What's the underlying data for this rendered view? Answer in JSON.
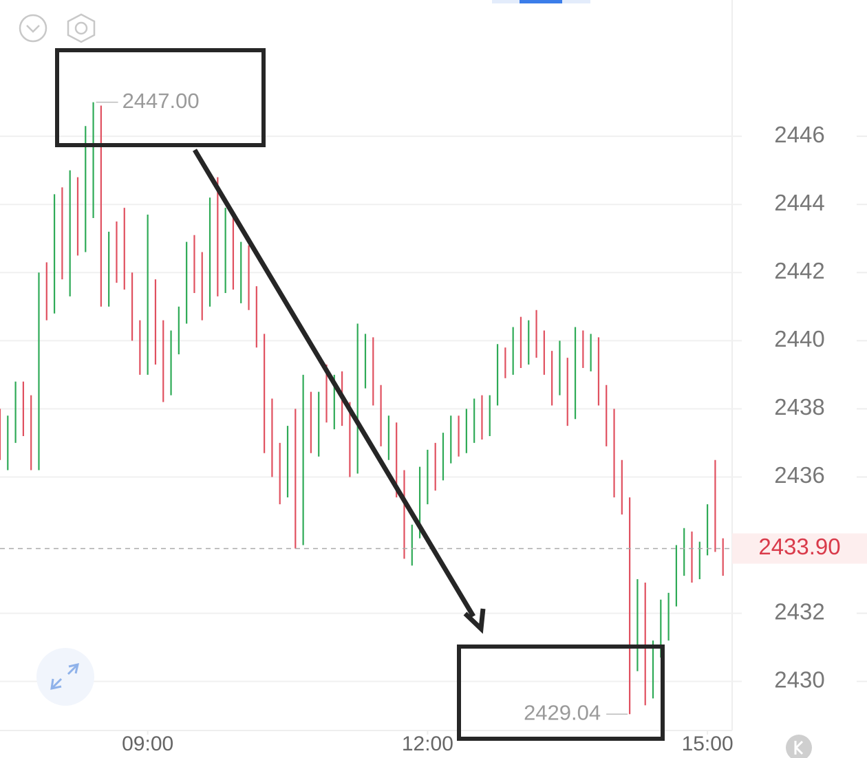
{
  "chart_data": {
    "type": "ohlc",
    "up_color": "#2eaa56",
    "down_color": "#e0505f",
    "grid": true,
    "xlim": [
      0,
      94
    ],
    "ylim": [
      2428.6,
      2450
    ],
    "yticks": [
      2430,
      2432,
      2436,
      2438,
      2440,
      2442,
      2444,
      2446
    ],
    "xticks": [
      {
        "value": 19,
        "label": "09:00"
      },
      {
        "value": 55,
        "label": "12:00"
      },
      {
        "value": 91,
        "label": "15:00"
      }
    ],
    "last_price": {
      "value": 2433.9,
      "label": "2433.90",
      "color": "#d93a4a"
    },
    "annotations": [
      {
        "value": 2447.0,
        "label": "2447.00",
        "kind": "high"
      },
      {
        "value": 2429.04,
        "label": "2429.04",
        "kind": "low"
      }
    ],
    "bars": [
      [
        2437.5,
        2438,
        2436.5,
        2437
      ],
      [
        2437,
        2437.8,
        2436.2,
        2437.6
      ],
      [
        2437.6,
        2438.8,
        2437,
        2438.5
      ],
      [
        2438.5,
        2438.8,
        2437.2,
        2437.4
      ],
      [
        2437.4,
        2438.4,
        2436.2,
        2436.4
      ],
      [
        2436.4,
        2442,
        2436.2,
        2441.8
      ],
      [
        2441.8,
        2442.3,
        2440.6,
        2441
      ],
      [
        2441,
        2444.3,
        2440.8,
        2443.8
      ],
      [
        2443.8,
        2444.5,
        2441.8,
        2442
      ],
      [
        2442,
        2445,
        2441.3,
        2444.6
      ],
      [
        2444.6,
        2444.8,
        2442.5,
        2443
      ],
      [
        2443,
        2446.3,
        2442.6,
        2446
      ],
      [
        2446,
        2447,
        2443.6,
        2446.8
      ],
      [
        2446.8,
        2446.9,
        2441,
        2441.4
      ],
      [
        2441.4,
        2443.2,
        2441,
        2442.8
      ],
      [
        2442.8,
        2443.5,
        2441.7,
        2442
      ],
      [
        2442,
        2443.9,
        2441.5,
        2441.7
      ],
      [
        2441.7,
        2442,
        2440,
        2440.3
      ],
      [
        2440.3,
        2440.6,
        2439,
        2439.3
      ],
      [
        2439.3,
        2443.7,
        2439,
        2441.5
      ],
      [
        2441.5,
        2441.8,
        2439.3,
        2439.6
      ],
      [
        2439.6,
        2440.6,
        2438.2,
        2438.6
      ],
      [
        2438.6,
        2440.3,
        2438.4,
        2440
      ],
      [
        2440,
        2441,
        2439.6,
        2440.8
      ],
      [
        2440.8,
        2442.9,
        2440.5,
        2442.6
      ],
      [
        2442.6,
        2443.1,
        2441.4,
        2441.8
      ],
      [
        2441.8,
        2442.6,
        2440.6,
        2441.2
      ],
      [
        2441.2,
        2444.2,
        2441,
        2443.8
      ],
      [
        2443.8,
        2444.8,
        2441.3,
        2441.8
      ],
      [
        2441.8,
        2443.9,
        2441.4,
        2443.5
      ],
      [
        2443.5,
        2443.7,
        2441.5,
        2441.9
      ],
      [
        2441.9,
        2442.9,
        2441.1,
        2442.4
      ],
      [
        2442.4,
        2442.8,
        2440.9,
        2441.1
      ],
      [
        2441.1,
        2441.6,
        2439.8,
        2440
      ],
      [
        2440,
        2440.2,
        2436.7,
        2437
      ],
      [
        2437,
        2438.3,
        2436,
        2436.3
      ],
      [
        2436.3,
        2437,
        2435.2,
        2435.5
      ],
      [
        2435.5,
        2437.5,
        2435.4,
        2437.2
      ],
      [
        2437.2,
        2438,
        2433.9,
        2434.2
      ],
      [
        2434.2,
        2439,
        2434,
        2438.3
      ],
      [
        2438.3,
        2438.5,
        2436.7,
        2437
      ],
      [
        2437,
        2438.5,
        2436.6,
        2438.2
      ],
      [
        2438.2,
        2439.3,
        2437.6,
        2437.9
      ],
      [
        2437.9,
        2439,
        2437.4,
        2438.8
      ],
      [
        2438.8,
        2439.1,
        2437.5,
        2437.8
      ],
      [
        2437.8,
        2438.2,
        2436,
        2436.3
      ],
      [
        2436.3,
        2440.5,
        2436.1,
        2439.7
      ],
      [
        2439.7,
        2440.2,
        2438.6,
        2439.9
      ],
      [
        2439.9,
        2440.1,
        2438.1,
        2438.4
      ],
      [
        2438.4,
        2438.7,
        2436.9,
        2437.2
      ],
      [
        2437.2,
        2437.8,
        2436.5,
        2437.5
      ],
      [
        2437.5,
        2437.6,
        2435.4,
        2435.7
      ],
      [
        2435.7,
        2436.2,
        2433.6,
        2433.9
      ],
      [
        2433.9,
        2434.6,
        2433.4,
        2434.3
      ],
      [
        2434.3,
        2436.3,
        2434.2,
        2436
      ],
      [
        2436,
        2436.8,
        2435.2,
        2436.5
      ],
      [
        2436.5,
        2437,
        2435.6,
        2436.2
      ],
      [
        2436.2,
        2437.3,
        2435.9,
        2437
      ],
      [
        2437,
        2437.8,
        2436.4,
        2437.5
      ],
      [
        2437.5,
        2437.8,
        2436.6,
        2436.9
      ],
      [
        2436.9,
        2438,
        2436.7,
        2437.8
      ],
      [
        2437.8,
        2438.3,
        2437,
        2438
      ],
      [
        2438,
        2438.4,
        2437.1,
        2437.4
      ],
      [
        2437.4,
        2438.4,
        2437.2,
        2438.3
      ],
      [
        2438.3,
        2439.9,
        2438.1,
        2439.6
      ],
      [
        2439.6,
        2439.8,
        2438.9,
        2439.2
      ],
      [
        2439.2,
        2440.4,
        2439,
        2440.1
      ],
      [
        2440.1,
        2440.7,
        2439.2,
        2439.5
      ],
      [
        2439.5,
        2440.6,
        2439.3,
        2440.4
      ],
      [
        2440.4,
        2440.9,
        2439.5,
        2439.8
      ],
      [
        2439.8,
        2440.3,
        2439,
        2439.3
      ],
      [
        2439.3,
        2439.7,
        2438.1,
        2438.6
      ],
      [
        2438.6,
        2440,
        2438.4,
        2439.3
      ],
      [
        2439.3,
        2439.5,
        2437.5,
        2437.8
      ],
      [
        2437.8,
        2440.4,
        2437.7,
        2440
      ],
      [
        2440,
        2440.3,
        2439.2,
        2439.6
      ],
      [
        2439.6,
        2440.2,
        2439.1,
        2440
      ],
      [
        2440,
        2440.1,
        2438.1,
        2438.4
      ],
      [
        2438.4,
        2438.7,
        2436.9,
        2437.2
      ],
      [
        2437.2,
        2438,
        2435.4,
        2435.7
      ],
      [
        2435.7,
        2436.5,
        2434.9,
        2435.2
      ],
      [
        2435.2,
        2435.4,
        2429.04,
        2430.6
      ],
      [
        2430.6,
        2433,
        2430.3,
        2432.7
      ],
      [
        2432.7,
        2432.9,
        2429.3,
        2429.7
      ],
      [
        2429.7,
        2431.2,
        2429.5,
        2430.9
      ],
      [
        2430.9,
        2432.4,
        2430.7,
        2432.1
      ],
      [
        2432.1,
        2432.6,
        2431.2,
        2432.4
      ],
      [
        2432.4,
        2434,
        2432.2,
        2433.8
      ],
      [
        2433.8,
        2434.5,
        2433.1,
        2434.2
      ],
      [
        2434.2,
        2434.4,
        2432.9,
        2433.3
      ],
      [
        2433.3,
        2434.1,
        2433,
        2433.9
      ],
      [
        2433.9,
        2435.2,
        2433.7,
        2434.9
      ],
      [
        2434.9,
        2436.5,
        2433.8,
        2434.1
      ],
      [
        2434.1,
        2434.2,
        2433.1,
        2433.9
      ]
    ]
  }
}
